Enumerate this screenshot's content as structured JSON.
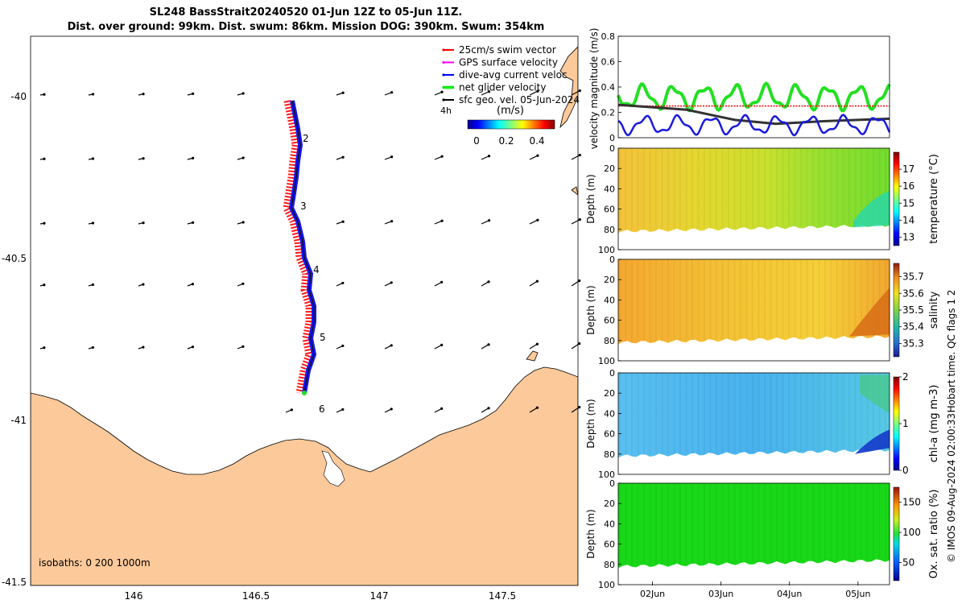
{
  "title_line1": "SL248 BassStrait20240520 01-Jun 12Z to 05-Jun 11Z.",
  "title_line2": "Dist. over ground: 99km. Dist. swum: 86km. Mission DOG: 390km. Swum: 354km",
  "map": {
    "lon_ticks": [
      "146",
      "146.5",
      "147",
      "147.5"
    ],
    "lat_ticks": [
      "-40",
      "-40.5",
      "-41",
      "-41.5"
    ],
    "legend": [
      {
        "label": "25cm/s swim vector",
        "color": "#ff0000"
      },
      {
        "label": "GPS surface velocity",
        "color": "#ff00ff"
      },
      {
        "label": "dive-avg current veloc",
        "color": "#0000ff"
      },
      {
        "label": "net glider velocity",
        "color": "#00ee00"
      },
      {
        "label": "sfc geo. vel. 05-Jun-2024",
        "color": "#000000"
      }
    ],
    "interval_label": "4h",
    "speed_colorbar_title": "(m/s)",
    "speed_colorbar_ticks": [
      "0",
      "0.2",
      "0.4"
    ],
    "isobaths_label": "isobaths: 0   200  1000m",
    "day_markers": [
      "2",
      "3",
      "4",
      "5",
      "6"
    ],
    "land_color": "#fcc99a"
  },
  "chart_data": [
    {
      "type": "line",
      "title": "",
      "ylabel": "velocity magnitude (m/s)",
      "ylim": [
        0,
        0.8
      ],
      "yticks": [
        "0",
        "0.2",
        "0.4",
        "0.6",
        "0.8"
      ],
      "x_range_days": [
        1.5,
        5.46
      ],
      "series": [
        {
          "name": "net glider velocity",
          "color": "#22e022",
          "mean": 0.32,
          "amplitude": 0.08
        },
        {
          "name": "25cm/s swim vector",
          "color": "#ff0000",
          "values": [
            0.25,
            0.25
          ]
        },
        {
          "name": "sfc geo. vel.",
          "color": "#333333",
          "x": [
            1.5,
            2.5,
            3.2,
            3.8,
            4.5,
            5.46
          ],
          "values": [
            0.26,
            0.22,
            0.14,
            0.11,
            0.13,
            0.15
          ]
        },
        {
          "name": "dive-avg current veloc",
          "color": "#1a1adc",
          "mean": 0.1,
          "amplitude": 0.06
        }
      ]
    },
    {
      "type": "heatmap",
      "variable": "temperature",
      "ylabel": "Depth (m)",
      "ylim": [
        0,
        100
      ],
      "yticks": [
        "0",
        "20",
        "40",
        "60",
        "80",
        "100"
      ],
      "colorbar_label": "temperature (°C)",
      "colorbar_ticks": [
        "13",
        "14",
        "15",
        "16",
        "17"
      ],
      "clim": [
        12.5,
        18
      ],
      "max_depth_m": 82
    },
    {
      "type": "heatmap",
      "variable": "salinity",
      "ylabel": "Depth (m)",
      "ylim": [
        0,
        100
      ],
      "yticks": [
        "0",
        "20",
        "40",
        "60",
        "80",
        "100"
      ],
      "colorbar_label": "salinity",
      "colorbar_ticks": [
        "35.3",
        "35.4",
        "35.5",
        "35.6",
        "35.7"
      ],
      "clim": [
        35.22,
        35.78
      ],
      "max_depth_m": 82
    },
    {
      "type": "heatmap",
      "variable": "chl-a",
      "ylabel": "Depth (m)",
      "ylim": [
        0,
        100
      ],
      "yticks": [
        "0",
        "20",
        "40",
        "60",
        "80",
        "100"
      ],
      "colorbar_label": "chl-a (mg m-3)",
      "colorbar_ticks": [
        "0",
        "1",
        "2"
      ],
      "clim": [
        0,
        2
      ],
      "max_depth_m": 82
    },
    {
      "type": "heatmap",
      "variable": "oxygen saturation",
      "ylabel": "Depth (m)",
      "ylim": [
        0,
        100
      ],
      "yticks": [
        "0",
        "20",
        "40",
        "60",
        "80",
        "100"
      ],
      "colorbar_label": "Ox. sat. ratio (%)",
      "colorbar_ticks": [
        "50",
        "100",
        "150"
      ],
      "clim": [
        20,
        175
      ],
      "max_depth_m": 82
    }
  ],
  "time_axis": {
    "ticks": [
      "02Jun",
      "03Jun",
      "04Jun",
      "05Jun"
    ]
  },
  "footer": {
    "qc_note": "Hobart time. QC flags 1  2",
    "credit": "© IMOS 09-Aug-2024 02:00:33"
  }
}
